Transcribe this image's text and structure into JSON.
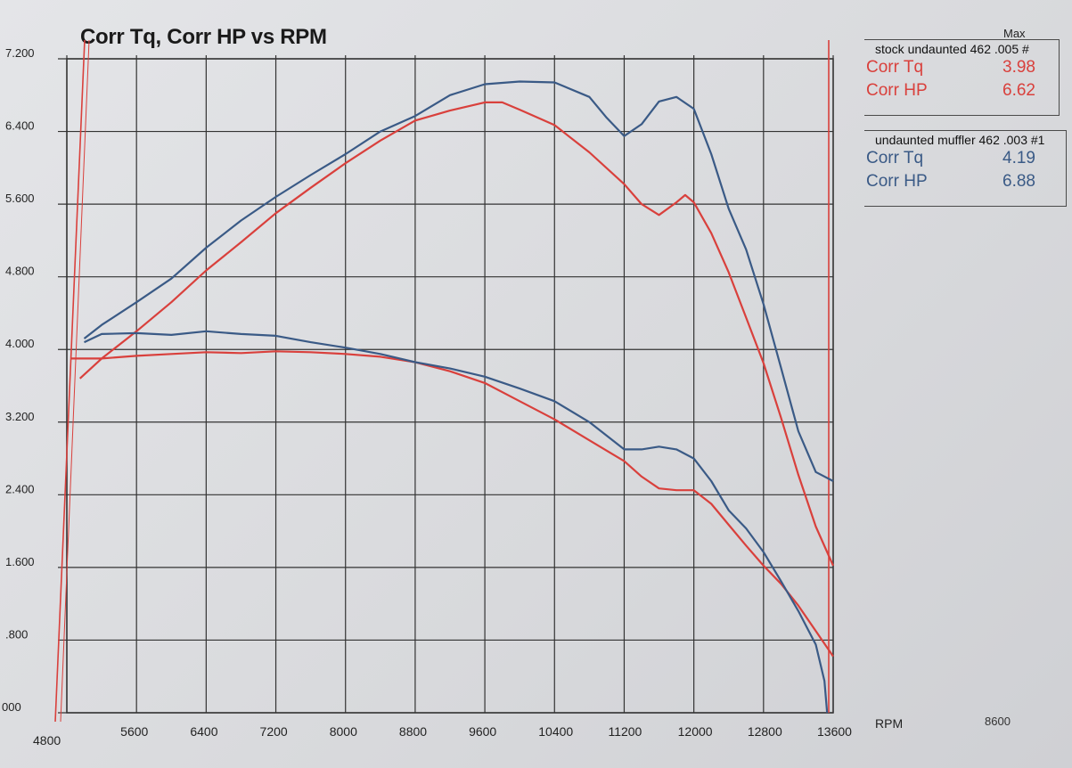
{
  "title": "Corr Tq, Corr HP vs RPM",
  "legend": {
    "max_header": "Max",
    "runs": [
      {
        "name": "stock undaunted 462 .005",
        "suffix": "#",
        "color": "#d9403c",
        "rows": [
          {
            "label": "Corr Tq",
            "value": "3.98"
          },
          {
            "label": "Corr HP",
            "value": "6.62"
          }
        ]
      },
      {
        "name": "undaunted muffler 462 .003",
        "suffix": "#1",
        "color": "#3a5a86",
        "rows": [
          {
            "label": "Corr Tq",
            "value": "4.19"
          },
          {
            "label": "Corr HP",
            "value": "6.88"
          }
        ]
      }
    ]
  },
  "axis": {
    "x_unit_label": "RPM",
    "x_extra_label": "8600"
  },
  "chart_data": {
    "type": "line",
    "title": "Corr Tq, Corr HP vs RPM",
    "xlabel": "RPM",
    "ylabel": "",
    "x_ticks": [
      4800,
      5600,
      6400,
      7200,
      8000,
      8800,
      9600,
      10400,
      11200,
      12000,
      12800,
      13600
    ],
    "y_ticks": [
      "000",
      ".800",
      "1.600",
      "2.400",
      "3.200",
      "4.000",
      "4.800",
      "5.600",
      "6.400",
      "7.200"
    ],
    "y_tick_values": [
      0,
      0.8,
      1.6,
      2.4,
      3.2,
      4.0,
      4.8,
      5.6,
      6.4,
      7.2
    ],
    "xlim": [
      4800,
      13600
    ],
    "ylim": [
      0,
      7.2
    ],
    "grid": true,
    "series": [
      {
        "name": "stock undaunted 462 .005 Corr HP",
        "color": "#d9403c",
        "points": [
          [
            4950,
            3.68
          ],
          [
            5200,
            3.9
          ],
          [
            5600,
            4.2
          ],
          [
            6000,
            4.52
          ],
          [
            6400,
            4.87
          ],
          [
            6800,
            5.18
          ],
          [
            7200,
            5.5
          ],
          [
            7600,
            5.78
          ],
          [
            8000,
            6.05
          ],
          [
            8400,
            6.3
          ],
          [
            8800,
            6.52
          ],
          [
            9200,
            6.63
          ],
          [
            9600,
            6.72
          ],
          [
            9800,
            6.72
          ],
          [
            10000,
            6.64
          ],
          [
            10400,
            6.47
          ],
          [
            10800,
            6.17
          ],
          [
            11200,
            5.82
          ],
          [
            11400,
            5.6
          ],
          [
            11600,
            5.48
          ],
          [
            11800,
            5.62
          ],
          [
            11900,
            5.7
          ],
          [
            12000,
            5.62
          ],
          [
            12200,
            5.28
          ],
          [
            12400,
            4.85
          ],
          [
            12600,
            4.35
          ],
          [
            12800,
            3.85
          ],
          [
            13000,
            3.25
          ],
          [
            13200,
            2.62
          ],
          [
            13400,
            2.05
          ],
          [
            13600,
            1.62
          ]
        ]
      },
      {
        "name": "stock undaunted 462 .005 Corr Tq",
        "color": "#d9403c",
        "points": [
          [
            4850,
            3.9
          ],
          [
            5200,
            3.9
          ],
          [
            5600,
            3.93
          ],
          [
            6000,
            3.95
          ],
          [
            6400,
            3.97
          ],
          [
            6800,
            3.96
          ],
          [
            7200,
            3.98
          ],
          [
            7600,
            3.97
          ],
          [
            8000,
            3.95
          ],
          [
            8400,
            3.92
          ],
          [
            8800,
            3.86
          ],
          [
            9200,
            3.76
          ],
          [
            9600,
            3.63
          ],
          [
            10000,
            3.43
          ],
          [
            10400,
            3.23
          ],
          [
            10800,
            3.0
          ],
          [
            11200,
            2.77
          ],
          [
            11400,
            2.6
          ],
          [
            11600,
            2.47
          ],
          [
            11800,
            2.45
          ],
          [
            12000,
            2.45
          ],
          [
            12200,
            2.3
          ],
          [
            12400,
            2.07
          ],
          [
            12600,
            1.84
          ],
          [
            12800,
            1.62
          ],
          [
            13000,
            1.42
          ],
          [
            13200,
            1.18
          ],
          [
            13400,
            0.9
          ],
          [
            13600,
            0.62
          ]
        ]
      },
      {
        "name": "undaunted muffler 462 .003 Corr HP",
        "color": "#3a5a86",
        "points": [
          [
            5000,
            4.12
          ],
          [
            5200,
            4.27
          ],
          [
            5600,
            4.52
          ],
          [
            6000,
            4.78
          ],
          [
            6400,
            5.12
          ],
          [
            6800,
            5.42
          ],
          [
            7200,
            5.68
          ],
          [
            7600,
            5.92
          ],
          [
            8000,
            6.15
          ],
          [
            8400,
            6.4
          ],
          [
            8800,
            6.57
          ],
          [
            9200,
            6.8
          ],
          [
            9600,
            6.92
          ],
          [
            10000,
            6.95
          ],
          [
            10400,
            6.94
          ],
          [
            10800,
            6.78
          ],
          [
            11000,
            6.55
          ],
          [
            11200,
            6.35
          ],
          [
            11400,
            6.48
          ],
          [
            11600,
            6.73
          ],
          [
            11800,
            6.78
          ],
          [
            12000,
            6.65
          ],
          [
            12200,
            6.15
          ],
          [
            12400,
            5.55
          ],
          [
            12600,
            5.1
          ],
          [
            12800,
            4.5
          ],
          [
            13000,
            3.8
          ],
          [
            13200,
            3.1
          ],
          [
            13400,
            2.65
          ],
          [
            13600,
            2.55
          ]
        ]
      },
      {
        "name": "undaunted muffler 462 .003 Corr Tq",
        "color": "#3a5a86",
        "points": [
          [
            5000,
            4.08
          ],
          [
            5200,
            4.17
          ],
          [
            5600,
            4.18
          ],
          [
            6000,
            4.16
          ],
          [
            6400,
            4.2
          ],
          [
            6800,
            4.17
          ],
          [
            7200,
            4.15
          ],
          [
            7600,
            4.08
          ],
          [
            8000,
            4.02
          ],
          [
            8400,
            3.95
          ],
          [
            8800,
            3.86
          ],
          [
            9200,
            3.79
          ],
          [
            9600,
            3.7
          ],
          [
            10000,
            3.57
          ],
          [
            10400,
            3.43
          ],
          [
            10800,
            3.2
          ],
          [
            11200,
            2.9
          ],
          [
            11400,
            2.9
          ],
          [
            11600,
            2.93
          ],
          [
            11800,
            2.9
          ],
          [
            12000,
            2.8
          ],
          [
            12200,
            2.55
          ],
          [
            12400,
            2.23
          ],
          [
            12600,
            2.03
          ],
          [
            12800,
            1.77
          ],
          [
            13000,
            1.45
          ],
          [
            13200,
            1.12
          ],
          [
            13400,
            0.75
          ],
          [
            13500,
            0.35
          ],
          [
            13530,
            0.0
          ]
        ]
      }
    ]
  }
}
